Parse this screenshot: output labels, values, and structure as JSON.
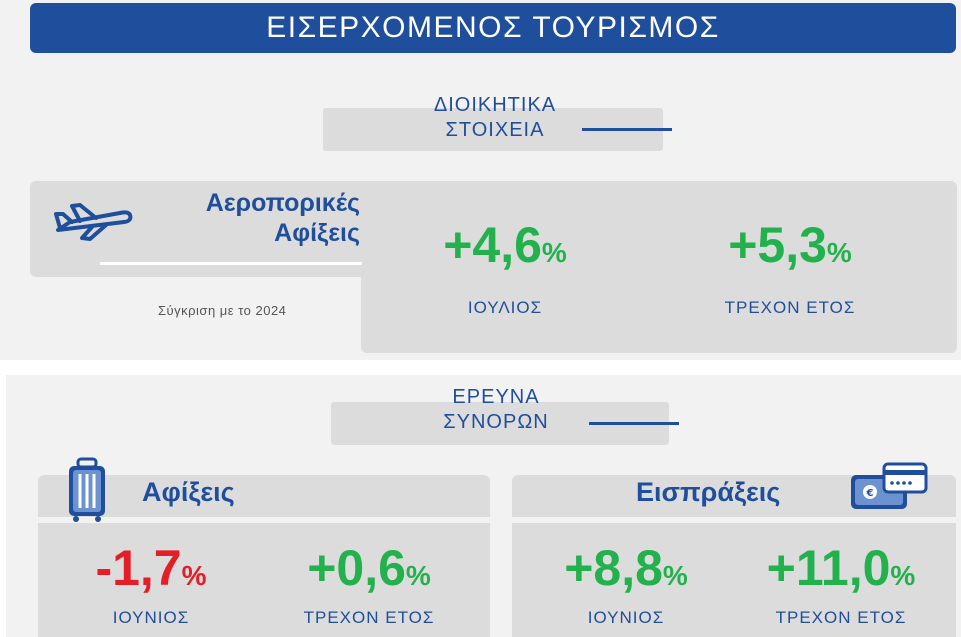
{
  "title": "ΕΙΣΕΡΧΟΜΕΝΟΣ ΤΟΥΡΙΣΜΟΣ",
  "admin_section": {
    "label_line1": "ΔΙΟΙΚΗΤΙΚΑ",
    "label_line2": "ΣΤΟΙΧΕΙΑ",
    "heading_line1": "Αεροπορικές",
    "heading_line2": "Αφίξεις",
    "comparison_note": "Σύγκριση με το 2024",
    "month": {
      "value": "+4,6",
      "unit": "%",
      "label": "ΙΟΥΛΙΟΣ"
    },
    "ytd": {
      "value": "+5,3",
      "unit": "%",
      "label": "ΤΡΕΧΟΝ ΕΤΟΣ"
    }
  },
  "border_section": {
    "label_line1": "ΕΡΕΥΝΑ",
    "label_line2": "ΣΥΝΟΡΩΝ",
    "arrivals": {
      "heading": "Αφίξεις",
      "month": {
        "value": "-1,7",
        "unit": "%",
        "label": "ΙΟΥΝΙΟΣ"
      },
      "ytd": {
        "value": "+0,6",
        "unit": "%",
        "label": "ΤΡΕΧΟΝ ΕΤΟΣ"
      }
    },
    "receipts": {
      "heading": "Εισπράξεις",
      "month": {
        "value": "+8,8",
        "unit": "%",
        "label": "ΙΟΥΝΙΟΣ"
      },
      "ytd": {
        "value": "+11,0",
        "unit": "%",
        "label": "ΤΡΕΧΟΝ ΕΤΟΣ"
      }
    }
  },
  "colors": {
    "brand_blue": "#1f4e9c",
    "positive": "#22b14c",
    "negative": "#e41e26",
    "panel": "#f2f2f2",
    "box": "#dcdcdc"
  },
  "icons": [
    "airplane-icon",
    "suitcase-icon",
    "payment-card-icon"
  ]
}
